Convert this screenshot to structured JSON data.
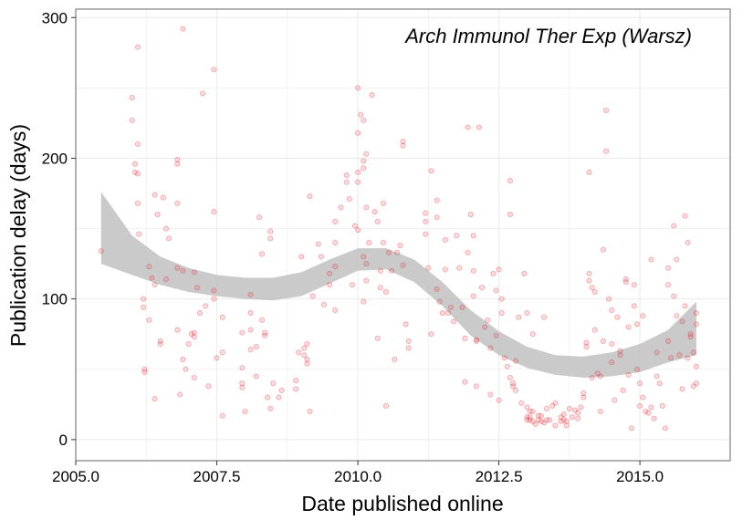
{
  "chart_data": {
    "type": "scatter",
    "annotation": "Arch Immunol Ther Exp (Warsz)",
    "xlabel": "Date published online",
    "ylabel": "Publication delay (days)",
    "xlim": [
      2005.0,
      2016.6
    ],
    "ylim": [
      -15,
      306
    ],
    "xticks": [
      2005.0,
      2007.5,
      2010.0,
      2012.5,
      2015.0
    ],
    "xtick_labels": [
      "2005.0",
      "2007.5",
      "2010.0",
      "2012.5",
      "2015.0"
    ],
    "yticks": [
      0,
      100,
      200,
      300
    ],
    "ytick_labels": [
      "0",
      "100",
      "200",
      "300"
    ],
    "grid": true,
    "colors": {
      "points": "#e8202a",
      "ribbon": "#bdbdbd",
      "panel_border": "#7f7f7f",
      "grid": "#ebebeb"
    },
    "smooth_band": {
      "x": [
        2005.45,
        2006.0,
        2006.5,
        2007.0,
        2007.5,
        2008.0,
        2008.5,
        2009.0,
        2009.5,
        2010.0,
        2010.5,
        2011.0,
        2011.5,
        2012.0,
        2012.5,
        2013.0,
        2013.5,
        2014.0,
        2014.5,
        2015.0,
        2015.5,
        2016.0
      ],
      "upper": [
        176,
        145,
        130,
        122,
        117,
        115,
        115,
        119,
        128,
        136,
        136,
        128,
        112,
        92,
        77,
        66,
        60,
        59,
        62,
        68,
        78,
        98
      ],
      "lower": [
        125,
        117,
        110,
        105,
        102,
        100,
        99,
        102,
        111,
        120,
        121,
        112,
        95,
        74,
        60,
        51,
        46,
        44,
        45,
        48,
        55,
        60
      ]
    },
    "points": [
      [
        2005.45,
        134
      ],
      [
        2006.0,
        243
      ],
      [
        2006.0,
        227
      ],
      [
        2006.05,
        196
      ],
      [
        2006.05,
        190
      ],
      [
        2006.1,
        279
      ],
      [
        2006.1,
        210
      ],
      [
        2006.1,
        189
      ],
      [
        2006.1,
        168
      ],
      [
        2006.12,
        146
      ],
      [
        2006.2,
        100
      ],
      [
        2006.2,
        94
      ],
      [
        2006.22,
        50
      ],
      [
        2006.22,
        48
      ],
      [
        2006.3,
        123
      ],
      [
        2006.3,
        85
      ],
      [
        2006.35,
        115
      ],
      [
        2006.4,
        174
      ],
      [
        2006.4,
        110
      ],
      [
        2006.4,
        29
      ],
      [
        2006.45,
        160
      ],
      [
        2006.5,
        70
      ],
      [
        2006.5,
        68
      ],
      [
        2006.55,
        172
      ],
      [
        2006.6,
        150
      ],
      [
        2006.6,
        114
      ],
      [
        2006.65,
        143
      ],
      [
        2006.8,
        199
      ],
      [
        2006.8,
        196
      ],
      [
        2006.8,
        168
      ],
      [
        2006.8,
        122
      ],
      [
        2006.8,
        78
      ],
      [
        2006.85,
        32
      ],
      [
        2006.9,
        292
      ],
      [
        2006.9,
        120
      ],
      [
        2006.9,
        57
      ],
      [
        2006.95,
        50
      ],
      [
        2007.0,
        68
      ],
      [
        2007.05,
        75
      ],
      [
        2007.1,
        119
      ],
      [
        2007.1,
        76
      ],
      [
        2007.1,
        73
      ],
      [
        2007.1,
        44
      ],
      [
        2007.15,
        108
      ],
      [
        2007.2,
        90
      ],
      [
        2007.25,
        246
      ],
      [
        2007.3,
        95
      ],
      [
        2007.35,
        38
      ],
      [
        2007.45,
        263
      ],
      [
        2007.45,
        162
      ],
      [
        2007.45,
        106
      ],
      [
        2007.45,
        100
      ],
      [
        2007.5,
        58
      ],
      [
        2007.6,
        87
      ],
      [
        2007.6,
        62
      ],
      [
        2007.6,
        17
      ],
      [
        2007.95,
        76
      ],
      [
        2007.95,
        51
      ],
      [
        2007.95,
        40
      ],
      [
        2007.95,
        37
      ],
      [
        2008.0,
        20
      ],
      [
        2008.1,
        103
      ],
      [
        2008.1,
        90
      ],
      [
        2008.1,
        78
      ],
      [
        2008.1,
        64
      ],
      [
        2008.2,
        66
      ],
      [
        2008.2,
        45
      ],
      [
        2008.25,
        158
      ],
      [
        2008.3,
        132
      ],
      [
        2008.3,
        85
      ],
      [
        2008.35,
        76
      ],
      [
        2008.35,
        74
      ],
      [
        2008.4,
        30
      ],
      [
        2008.45,
        148
      ],
      [
        2008.45,
        143
      ],
      [
        2008.45,
        22
      ],
      [
        2008.5,
        40
      ],
      [
        2008.6,
        30
      ],
      [
        2008.65,
        35
      ],
      [
        2008.9,
        42
      ],
      [
        2008.9,
        36
      ],
      [
        2008.95,
        62
      ],
      [
        2009.0,
        130
      ],
      [
        2009.05,
        65
      ],
      [
        2009.05,
        60
      ],
      [
        2009.1,
        68
      ],
      [
        2009.1,
        57
      ],
      [
        2009.1,
        54
      ],
      [
        2009.15,
        20
      ],
      [
        2009.15,
        173
      ],
      [
        2009.2,
        102
      ],
      [
        2009.3,
        139
      ],
      [
        2009.35,
        130
      ],
      [
        2009.4,
        96
      ],
      [
        2009.5,
        118
      ],
      [
        2009.5,
        110
      ],
      [
        2009.6,
        155
      ],
      [
        2009.6,
        140
      ],
      [
        2009.6,
        123
      ],
      [
        2009.6,
        92
      ],
      [
        2009.7,
        165
      ],
      [
        2009.8,
        188
      ],
      [
        2009.8,
        183
      ],
      [
        2009.85,
        171
      ],
      [
        2009.9,
        110
      ],
      [
        2009.95,
        152
      ],
      [
        2010.0,
        250
      ],
      [
        2010.0,
        218
      ],
      [
        2010.0,
        190
      ],
      [
        2010.0,
        183
      ],
      [
        2010.0,
        149
      ],
      [
        2010.05,
        231
      ],
      [
        2010.1,
        227
      ],
      [
        2010.1,
        198
      ],
      [
        2010.1,
        193
      ],
      [
        2010.1,
        130
      ],
      [
        2010.1,
        98
      ],
      [
        2010.15,
        203
      ],
      [
        2010.15,
        165
      ],
      [
        2010.15,
        125
      ],
      [
        2010.15,
        113
      ],
      [
        2010.2,
        140
      ],
      [
        2010.25,
        245
      ],
      [
        2010.3,
        162
      ],
      [
        2010.35,
        155
      ],
      [
        2010.35,
        72
      ],
      [
        2010.4,
        120
      ],
      [
        2010.4,
        108
      ],
      [
        2010.45,
        168
      ],
      [
        2010.45,
        140
      ],
      [
        2010.5,
        105
      ],
      [
        2010.5,
        24
      ],
      [
        2010.55,
        133
      ],
      [
        2010.6,
        120
      ],
      [
        2010.65,
        57
      ],
      [
        2010.7,
        133
      ],
      [
        2010.75,
        138
      ],
      [
        2010.8,
        212
      ],
      [
        2010.8,
        209
      ],
      [
        2010.8,
        124
      ],
      [
        2010.85,
        82
      ],
      [
        2010.9,
        70
      ],
      [
        2010.9,
        65
      ],
      [
        2011.2,
        161
      ],
      [
        2011.2,
        155
      ],
      [
        2011.2,
        146
      ],
      [
        2011.25,
        122
      ],
      [
        2011.3,
        191
      ],
      [
        2011.3,
        75
      ],
      [
        2011.4,
        170
      ],
      [
        2011.4,
        158
      ],
      [
        2011.4,
        107
      ],
      [
        2011.45,
        98
      ],
      [
        2011.5,
        90
      ],
      [
        2011.55,
        142
      ],
      [
        2011.55,
        121
      ],
      [
        2011.6,
        90
      ],
      [
        2011.65,
        94
      ],
      [
        2011.7,
        84
      ],
      [
        2011.75,
        145
      ],
      [
        2011.8,
        122
      ],
      [
        2011.85,
        94
      ],
      [
        2011.9,
        72
      ],
      [
        2011.9,
        41
      ],
      [
        2011.95,
        133
      ],
      [
        2011.95,
        222
      ],
      [
        2012.0,
        160
      ],
      [
        2012.05,
        145
      ],
      [
        2012.05,
        120
      ],
      [
        2012.05,
        102
      ],
      [
        2012.1,
        71
      ],
      [
        2012.1,
        70
      ],
      [
        2012.1,
        38
      ],
      [
        2012.15,
        222
      ],
      [
        2012.2,
        108
      ],
      [
        2012.25,
        80
      ],
      [
        2012.3,
        85
      ],
      [
        2012.35,
        65
      ],
      [
        2012.35,
        32
      ],
      [
        2012.4,
        118
      ],
      [
        2012.45,
        106
      ],
      [
        2012.45,
        74
      ],
      [
        2012.5,
        121
      ],
      [
        2012.5,
        28
      ],
      [
        2012.55,
        100
      ],
      [
        2012.55,
        90
      ],
      [
        2012.6,
        58
      ],
      [
        2012.65,
        52
      ],
      [
        2012.7,
        184
      ],
      [
        2012.7,
        160
      ],
      [
        2012.7,
        44
      ],
      [
        2012.75,
        40
      ],
      [
        2012.75,
        38
      ],
      [
        2012.8,
        56
      ],
      [
        2012.8,
        35
      ],
      [
        2012.85,
        87
      ],
      [
        2012.9,
        26
      ],
      [
        2012.95,
        118
      ],
      [
        2013.0,
        90
      ],
      [
        2013.0,
        23
      ],
      [
        2013.0,
        16
      ],
      [
        2013.0,
        14
      ],
      [
        2013.05,
        20
      ],
      [
        2013.05,
        16
      ],
      [
        2013.05,
        14
      ],
      [
        2013.1,
        75
      ],
      [
        2013.1,
        20
      ],
      [
        2013.1,
        13
      ],
      [
        2013.15,
        11
      ],
      [
        2013.2,
        17
      ],
      [
        2013.2,
        14
      ],
      [
        2013.25,
        17
      ],
      [
        2013.25,
        13
      ],
      [
        2013.3,
        12
      ],
      [
        2013.3,
        87
      ],
      [
        2013.35,
        22
      ],
      [
        2013.35,
        14
      ],
      [
        2013.4,
        14
      ],
      [
        2013.45,
        24
      ],
      [
        2013.5,
        26
      ],
      [
        2013.5,
        10
      ],
      [
        2013.6,
        16
      ],
      [
        2013.6,
        13
      ],
      [
        2013.65,
        18
      ],
      [
        2013.65,
        14
      ],
      [
        2013.7,
        13
      ],
      [
        2013.7,
        10
      ],
      [
        2013.75,
        22
      ],
      [
        2013.8,
        16
      ],
      [
        2013.85,
        21
      ],
      [
        2013.9,
        19
      ],
      [
        2013.9,
        15
      ],
      [
        2013.95,
        23
      ],
      [
        2014.0,
        30
      ],
      [
        2014.0,
        33
      ],
      [
        2014.05,
        69
      ],
      [
        2014.05,
        66
      ],
      [
        2014.1,
        190
      ],
      [
        2014.1,
        118
      ],
      [
        2014.1,
        113
      ],
      [
        2014.15,
        108
      ],
      [
        2014.15,
        44
      ],
      [
        2014.2,
        105
      ],
      [
        2014.2,
        78
      ],
      [
        2014.25,
        47
      ],
      [
        2014.3,
        45
      ],
      [
        2014.3,
        20
      ],
      [
        2014.35,
        135
      ],
      [
        2014.35,
        70
      ],
      [
        2014.4,
        234
      ],
      [
        2014.4,
        205
      ],
      [
        2014.45,
        100
      ],
      [
        2014.5,
        92
      ],
      [
        2014.5,
        68
      ],
      [
        2014.5,
        55
      ],
      [
        2014.55,
        28
      ],
      [
        2014.6,
        87
      ],
      [
        2014.65,
        63
      ],
      [
        2014.65,
        60
      ],
      [
        2014.7,
        35
      ],
      [
        2014.75,
        114
      ],
      [
        2014.75,
        112
      ],
      [
        2014.8,
        80
      ],
      [
        2014.8,
        46
      ],
      [
        2014.85,
        8
      ],
      [
        2014.9,
        110
      ],
      [
        2014.9,
        95
      ],
      [
        2014.95,
        82
      ],
      [
        2014.95,
        50
      ],
      [
        2015.0,
        24
      ],
      [
        2015.0,
        40
      ],
      [
        2015.05,
        88
      ],
      [
        2015.05,
        30
      ],
      [
        2015.1,
        20
      ],
      [
        2015.15,
        19
      ],
      [
        2015.2,
        128
      ],
      [
        2015.2,
        23
      ],
      [
        2015.25,
        15
      ],
      [
        2015.3,
        62
      ],
      [
        2015.3,
        45
      ],
      [
        2015.35,
        40
      ],
      [
        2015.4,
        24
      ],
      [
        2015.45,
        8
      ],
      [
        2015.5,
        122
      ],
      [
        2015.5,
        110
      ],
      [
        2015.5,
        70
      ],
      [
        2015.55,
        58
      ],
      [
        2015.6,
        152
      ],
      [
        2015.6,
        102
      ],
      [
        2015.65,
        128
      ],
      [
        2015.65,
        88
      ],
      [
        2015.7,
        60
      ],
      [
        2015.75,
        84
      ],
      [
        2015.75,
        36
      ],
      [
        2015.8,
        95
      ],
      [
        2015.8,
        159
      ],
      [
        2015.85,
        140
      ],
      [
        2015.85,
        58
      ],
      [
        2015.9,
        75
      ],
      [
        2015.9,
        73
      ],
      [
        2015.95,
        62
      ],
      [
        2015.95,
        38
      ],
      [
        2016.0,
        90
      ],
      [
        2016.0,
        82
      ],
      [
        2016.0,
        52
      ],
      [
        2016.0,
        40
      ]
    ]
  }
}
